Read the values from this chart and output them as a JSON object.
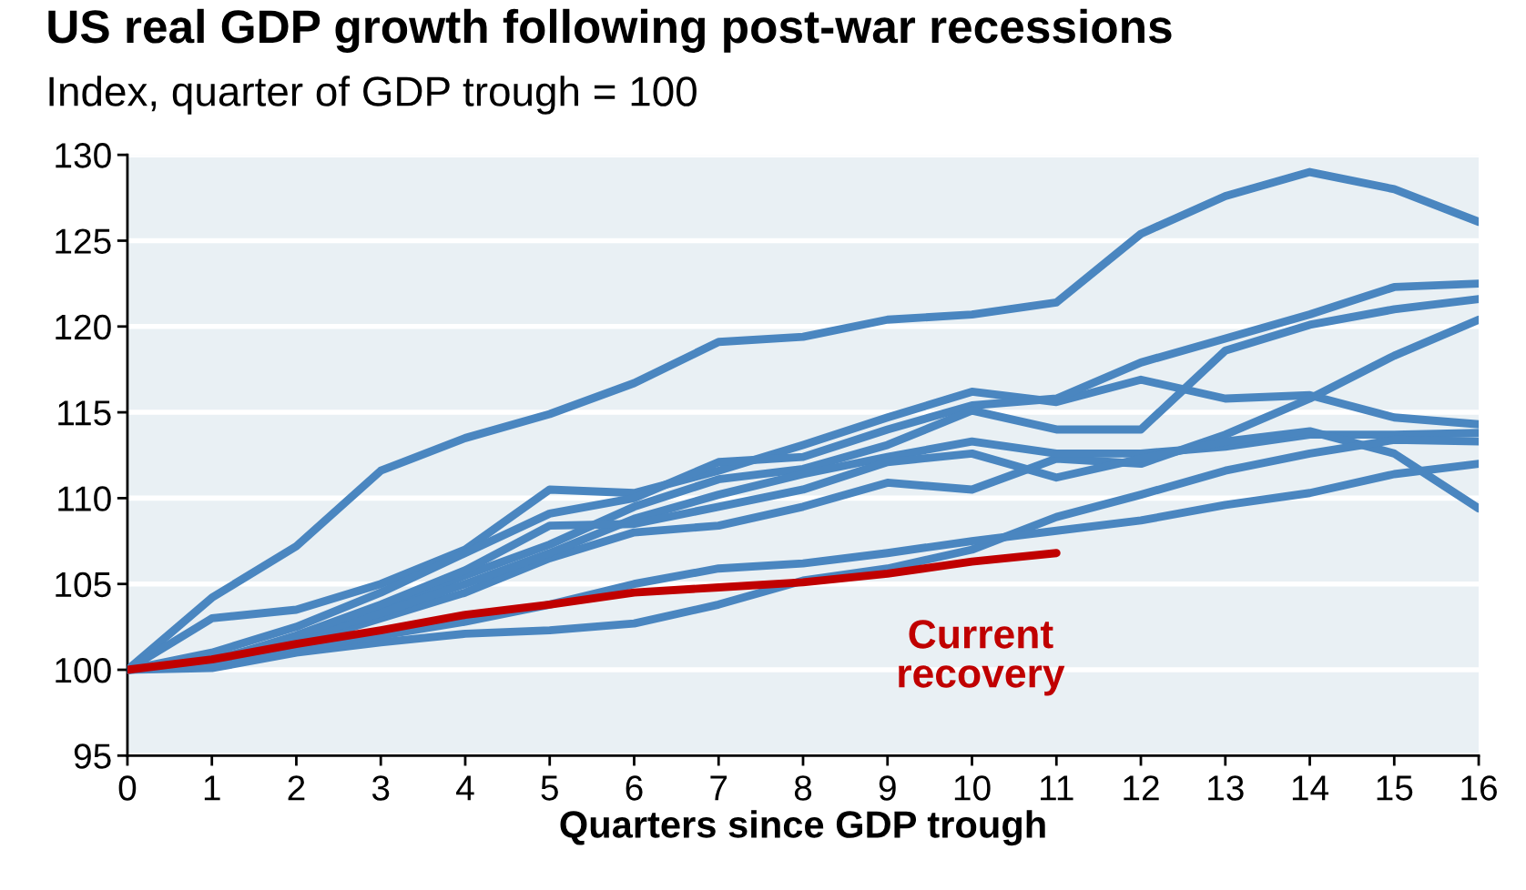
{
  "chart_data": {
    "type": "line",
    "title": "US real GDP growth following post-war recessions",
    "subtitle": "Index, quarter of GDP trough = 100",
    "xlabel": "Quarters since GDP trough",
    "x": [
      0,
      1,
      2,
      3,
      4,
      5,
      6,
      7,
      8,
      9,
      10,
      11,
      12,
      13,
      14,
      15,
      16
    ],
    "series": [
      {
        "color": "#4a86c0",
        "values": [
          100,
          104.2,
          107.2,
          111.6,
          113.5,
          114.9,
          116.7,
          119.1,
          119.4,
          120.4,
          120.7,
          121.4,
          125.4,
          127.6,
          129.0,
          128.0,
          126.1
        ]
      },
      {
        "color": "#4a86c0",
        "values": [
          100,
          103.0,
          103.5,
          105.0,
          107.0,
          110.5,
          110.3,
          111.6,
          113.1,
          114.7,
          116.2,
          115.6,
          116.9,
          115.8,
          116.0,
          114.7,
          114.3
        ]
      },
      {
        "color": "#4a86c0",
        "values": [
          100,
          101.0,
          102.5,
          104.5,
          106.8,
          109.1,
          110.0,
          112.1,
          112.4,
          114.0,
          115.4,
          115.8,
          117.9,
          119.3,
          120.7,
          122.3,
          122.5
        ]
      },
      {
        "color": "#4a86c0",
        "values": [
          100,
          100.6,
          101.8,
          103.5,
          105.5,
          107.3,
          109.5,
          111.1,
          111.7,
          113.1,
          115.1,
          114.0,
          114.0,
          118.6,
          120.1,
          121.0,
          121.6
        ]
      },
      {
        "color": "#4a86c0",
        "values": [
          100,
          100.5,
          101.5,
          103.0,
          104.5,
          106.5,
          108.0,
          108.4,
          109.5,
          110.9,
          110.5,
          112.3,
          112.0,
          113.7,
          115.8,
          118.3,
          120.4
        ]
      },
      {
        "color": "#4a86c0",
        "values": [
          100,
          100.3,
          101.8,
          103.3,
          105.0,
          106.8,
          108.8,
          110.2,
          111.4,
          112.4,
          113.3,
          112.6,
          112.6,
          113.0,
          113.7,
          113.7,
          113.8
        ]
      },
      {
        "color": "#4a86c0",
        "values": [
          100,
          100.5,
          102.0,
          103.8,
          105.8,
          108.4,
          108.5,
          109.5,
          110.5,
          112.1,
          112.6,
          111.2,
          112.3,
          113.3,
          113.9,
          112.6,
          109.4
        ]
      },
      {
        "color": "#4a86c0",
        "values": [
          100,
          100.1,
          101.0,
          101.6,
          102.1,
          102.3,
          102.7,
          103.8,
          105.2,
          105.9,
          107.0,
          108.9,
          110.2,
          111.6,
          112.6,
          113.4,
          113.3
        ]
      },
      {
        "color": "#4a86c0",
        "values": [
          100,
          100.3,
          101.2,
          102.0,
          102.8,
          103.8,
          105.0,
          105.9,
          106.2,
          106.8,
          107.5,
          108.1,
          108.7,
          109.6,
          110.3,
          111.4,
          112.0
        ]
      },
      {
        "name": "Current\nrecovery",
        "color": "#c00000",
        "x": [
          0,
          1,
          2,
          3,
          4,
          5,
          6,
          7,
          8,
          9,
          10,
          11
        ],
        "values": [
          100,
          100.6,
          101.5,
          102.3,
          103.2,
          103.8,
          104.5,
          104.8,
          105.1,
          105.6,
          106.3,
          106.8
        ]
      }
    ],
    "xlim": [
      0,
      16
    ],
    "ylim": [
      95,
      130
    ],
    "xticks": [
      0,
      1,
      2,
      3,
      4,
      5,
      6,
      7,
      8,
      9,
      10,
      11,
      12,
      13,
      14,
      15,
      16
    ],
    "yticks": [
      95,
      100,
      105,
      110,
      115,
      120,
      125,
      130
    ],
    "grid": "y",
    "line_style": "solid"
  }
}
